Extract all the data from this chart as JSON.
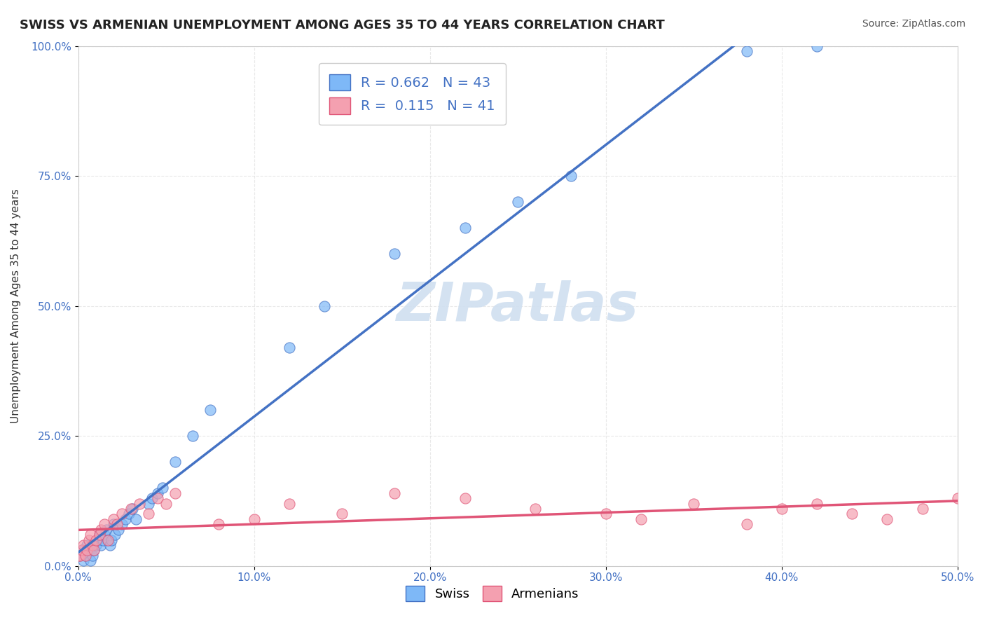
{
  "title": "SWISS VS ARMENIAN UNEMPLOYMENT AMONG AGES 35 TO 44 YEARS CORRELATION CHART",
  "source": "Source: ZipAtlas.com",
  "xlabel_bottom": "",
  "ylabel": "Unemployment Among Ages 35 to 44 years",
  "xtick_labels": [
    "0.0%",
    "10.0%",
    "20.0%",
    "30.0%",
    "40.0%",
    "50.0%"
  ],
  "ytick_labels": [
    "0.0%",
    "25.0%",
    "50.0%",
    "75.0%",
    "100.0%"
  ],
  "xlim": [
    0,
    0.5
  ],
  "ylim": [
    0,
    1.0
  ],
  "swiss_color": "#7eb8f7",
  "armenian_color": "#f4a0b0",
  "swiss_line_color": "#4472c4",
  "armenian_line_color": "#e05577",
  "swiss_marker_edge": "#6aa0e8",
  "armenian_marker_edge": "#e080a0",
  "R_swiss": 0.662,
  "N_swiss": 43,
  "R_armenian": 0.115,
  "N_armenian": 41,
  "watermark": "ZIPatlas",
  "watermark_color": "#d0dff0",
  "swiss_x": [
    0.0,
    0.001,
    0.002,
    0.003,
    0.004,
    0.005,
    0.006,
    0.007,
    0.008,
    0.009,
    0.01,
    0.011,
    0.012,
    0.013,
    0.014,
    0.015,
    0.016,
    0.017,
    0.018,
    0.019,
    0.02,
    0.021,
    0.023,
    0.025,
    0.027,
    0.029,
    0.031,
    0.033,
    0.04,
    0.042,
    0.045,
    0.048,
    0.055,
    0.065,
    0.075,
    0.12,
    0.14,
    0.18,
    0.22,
    0.25,
    0.28,
    0.38,
    0.42
  ],
  "swiss_y": [
    0.02,
    0.02,
    0.03,
    0.01,
    0.02,
    0.04,
    0.03,
    0.01,
    0.02,
    0.03,
    0.04,
    0.05,
    0.06,
    0.04,
    0.05,
    0.06,
    0.07,
    0.05,
    0.04,
    0.05,
    0.08,
    0.06,
    0.07,
    0.08,
    0.09,
    0.1,
    0.11,
    0.09,
    0.12,
    0.13,
    0.14,
    0.15,
    0.2,
    0.25,
    0.3,
    0.42,
    0.5,
    0.6,
    0.65,
    0.7,
    0.75,
    0.99,
    1.0
  ],
  "armenian_x": [
    0.0,
    0.001,
    0.002,
    0.003,
    0.004,
    0.005,
    0.006,
    0.007,
    0.008,
    0.009,
    0.01,
    0.012,
    0.013,
    0.015,
    0.017,
    0.02,
    0.022,
    0.025,
    0.03,
    0.035,
    0.04,
    0.045,
    0.05,
    0.055,
    0.08,
    0.1,
    0.12,
    0.15,
    0.18,
    0.22,
    0.26,
    0.3,
    0.32,
    0.35,
    0.38,
    0.4,
    0.42,
    0.44,
    0.46,
    0.48,
    0.5
  ],
  "armenian_y": [
    0.02,
    0.02,
    0.03,
    0.04,
    0.02,
    0.03,
    0.05,
    0.06,
    0.04,
    0.03,
    0.05,
    0.06,
    0.07,
    0.08,
    0.05,
    0.09,
    0.08,
    0.1,
    0.11,
    0.12,
    0.1,
    0.13,
    0.12,
    0.14,
    0.08,
    0.09,
    0.12,
    0.1,
    0.14,
    0.13,
    0.11,
    0.1,
    0.09,
    0.12,
    0.08,
    0.11,
    0.12,
    0.1,
    0.09,
    0.11,
    0.13
  ],
  "background_color": "#ffffff",
  "grid_color": "#e0e0e0",
  "title_fontsize": 13,
  "axis_label_fontsize": 11,
  "tick_fontsize": 11,
  "legend_fontsize": 14,
  "watermark_fontsize": 55,
  "source_fontsize": 10
}
